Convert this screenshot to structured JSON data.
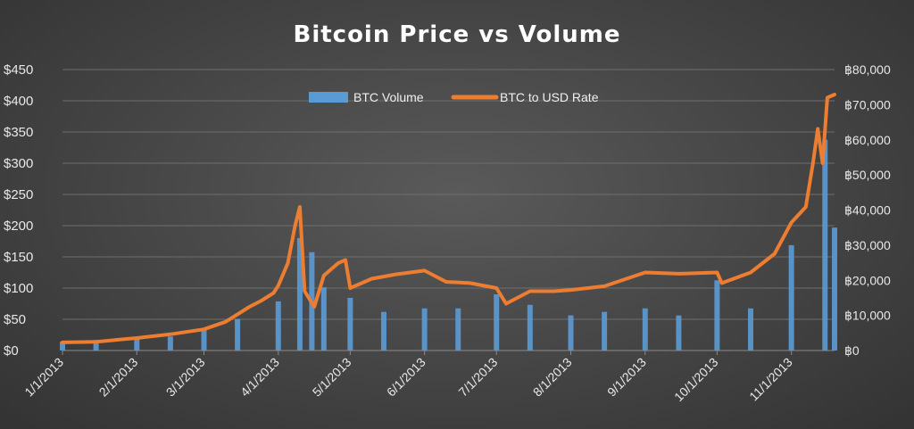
{
  "chart_data": {
    "type": "bar+line",
    "title": "Bitcoin Price vs Volume",
    "x_tick_labels": [
      "1/1/2013",
      "2/1/2013",
      "3/1/2013",
      "4/1/2013",
      "5/1/2013",
      "6/1/2013",
      "7/1/2013",
      "8/1/2013",
      "9/1/2013",
      "10/1/2013",
      "11/1/2013"
    ],
    "x_range": [
      "1/1/2013",
      "11/19/2013"
    ],
    "y_left": {
      "ticks": [
        "$0",
        "$50",
        "$100",
        "$150",
        "$200",
        "$250",
        "$300",
        "$350",
        "$400",
        "$450"
      ],
      "ylim": [
        0,
        450
      ]
    },
    "y_right": {
      "ticks": [
        "฿0",
        "฿10,000",
        "฿20,000",
        "฿30,000",
        "฿40,000",
        "฿50,000",
        "฿60,000",
        "฿70,000",
        "฿80,000"
      ],
      "ylim": [
        0,
        80000
      ]
    },
    "legend": {
      "placement": "top-center",
      "entries": [
        "BTC Volume",
        "BTC to USD Rate"
      ]
    },
    "grid": true,
    "colors": {
      "volume": "#5b9bd5",
      "price": "#ed7d31",
      "background": "#444444"
    },
    "series": [
      {
        "name": "BTC to USD Rate",
        "axis": "left",
        "kind": "line",
        "points": [
          [
            "1/1/2013",
            13
          ],
          [
            "1/15/2013",
            14
          ],
          [
            "2/1/2013",
            20
          ],
          [
            "2/15/2013",
            26
          ],
          [
            "3/1/2013",
            34
          ],
          [
            "3/10/2013",
            46
          ],
          [
            "3/20/2013",
            70
          ],
          [
            "3/25/2013",
            80
          ],
          [
            "3/30/2013",
            92
          ],
          [
            "4/1/2013",
            104
          ],
          [
            "4/5/2013",
            140
          ],
          [
            "4/8/2013",
            200
          ],
          [
            "4/10/2013",
            230
          ],
          [
            "4/12/2013",
            95
          ],
          [
            "4/16/2013",
            70
          ],
          [
            "4/20/2013",
            120
          ],
          [
            "4/26/2013",
            140
          ],
          [
            "4/29/2013",
            145
          ],
          [
            "5/1/2013",
            100
          ],
          [
            "5/10/2013",
            115
          ],
          [
            "5/20/2013",
            122
          ],
          [
            "6/1/2013",
            128
          ],
          [
            "6/10/2013",
            110
          ],
          [
            "6/20/2013",
            108
          ],
          [
            "7/1/2013",
            100
          ],
          [
            "7/5/2013",
            75
          ],
          [
            "7/15/2013",
            95
          ],
          [
            "7/25/2013",
            95
          ],
          [
            "8/1/2013",
            97
          ],
          [
            "8/15/2013",
            103
          ],
          [
            "9/1/2013",
            125
          ],
          [
            "9/15/2013",
            123
          ],
          [
            "10/1/2013",
            125
          ],
          [
            "10/3/2013",
            108
          ],
          [
            "10/15/2013",
            125
          ],
          [
            "10/25/2013",
            155
          ],
          [
            "11/1/2013",
            205
          ],
          [
            "11/7/2013",
            230
          ],
          [
            "11/10/2013",
            300
          ],
          [
            "11/12/2013",
            355
          ],
          [
            "11/14/2013",
            300
          ],
          [
            "11/16/2013",
            405
          ],
          [
            "11/19/2013",
            410
          ]
        ]
      },
      {
        "name": "BTC Volume",
        "axis": "right",
        "kind": "bar",
        "points": [
          [
            "1/1/2013",
            2500
          ],
          [
            "1/15/2013",
            3000
          ],
          [
            "2/1/2013",
            3500
          ],
          [
            "2/15/2013",
            4000
          ],
          [
            "3/1/2013",
            6000
          ],
          [
            "3/15/2013",
            9000
          ],
          [
            "4/1/2013",
            14000
          ],
          [
            "4/10/2013",
            32000
          ],
          [
            "4/15/2013",
            28000
          ],
          [
            "4/20/2013",
            18000
          ],
          [
            "5/1/2013",
            15000
          ],
          [
            "5/15/2013",
            11000
          ],
          [
            "6/1/2013",
            12000
          ],
          [
            "6/15/2013",
            12000
          ],
          [
            "7/1/2013",
            16000
          ],
          [
            "7/15/2013",
            13000
          ],
          [
            "8/1/2013",
            10000
          ],
          [
            "8/15/2013",
            11000
          ],
          [
            "9/1/2013",
            12000
          ],
          [
            "9/15/2013",
            10000
          ],
          [
            "10/1/2013",
            20000
          ],
          [
            "10/15/2013",
            12000
          ],
          [
            "11/1/2013",
            30000
          ],
          [
            "11/15/2013",
            60000
          ],
          [
            "11/19/2013",
            35000
          ]
        ]
      }
    ]
  }
}
